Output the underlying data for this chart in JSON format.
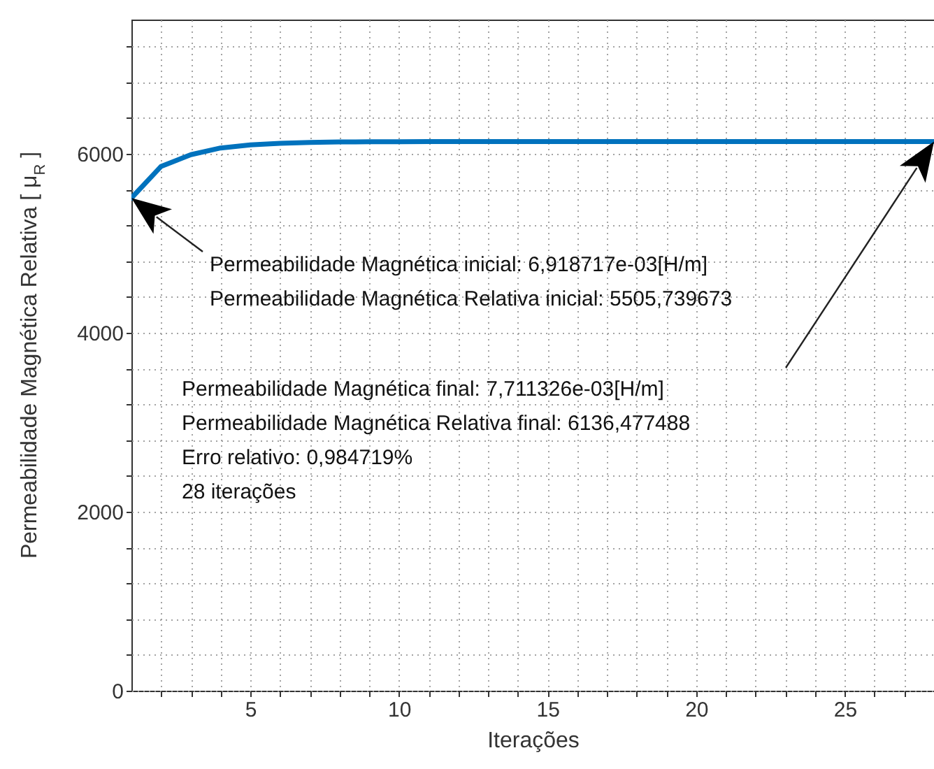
{
  "chart_data": {
    "type": "line",
    "xlabel": "Iterações",
    "ylabel": "Permeabilidade Magnética Relativa [ μ$_{R}$ ]",
    "x": [
      1,
      2,
      3,
      4,
      5,
      6,
      7,
      8,
      9,
      10,
      11,
      12,
      13,
      14,
      15,
      16,
      17,
      18,
      19,
      20,
      21,
      22,
      23,
      24,
      25,
      26,
      27,
      28
    ],
    "series": [
      {
        "color": "#0072bd",
        "values": [
          5506,
          5860,
          5990,
          6065,
          6100,
          6118,
          6127,
          6132,
          6134,
          6135,
          6136,
          6136,
          6136,
          6136,
          6136,
          6136,
          6136,
          6136,
          6136,
          6136,
          6136,
          6136,
          6136,
          6136,
          6136,
          6136,
          6136,
          6136
        ]
      }
    ],
    "xlim": [
      1,
      28
    ],
    "xticks": [
      {
        "value": 2,
        "label": null
      },
      {
        "value": 3,
        "label": null
      },
      {
        "value": 4,
        "label": null
      },
      5,
      {
        "value": 6,
        "label": null
      },
      {
        "value": 7,
        "label": null
      },
      {
        "value": 8,
        "label": null
      },
      {
        "value": 9,
        "label": null
      },
      10,
      {
        "value": 11,
        "label": null
      },
      {
        "value": 12,
        "label": null
      },
      {
        "value": 13,
        "label": null
      },
      {
        "value": 14,
        "label": null
      },
      15,
      {
        "value": 16,
        "label": null
      },
      {
        "value": 17,
        "label": null
      },
      {
        "value": 18,
        "label": null
      },
      {
        "value": 19,
        "label": null
      },
      20,
      {
        "value": 21,
        "label": null
      },
      {
        "value": 22,
        "label": null
      },
      {
        "value": 23,
        "label": null
      },
      {
        "value": 24,
        "label": null
      },
      25,
      {
        "value": 26,
        "label": null
      },
      {
        "value": 27,
        "label": null
      }
    ],
    "ylim": [
      0,
      7500
    ],
    "yticks": [
      0,
      {
        "value": 400,
        "label": null
      },
      {
        "value": 800,
        "label": null
      },
      {
        "value": 1200,
        "label": null
      },
      {
        "value": 1600,
        "label": null
      },
      2000,
      {
        "value": 2400,
        "label": null
      },
      {
        "value": 2800,
        "label": null
      },
      {
        "value": 3200,
        "label": null
      },
      {
        "value": 3600,
        "label": null
      },
      4000,
      {
        "value": 4400,
        "label": null
      },
      {
        "value": 4800,
        "label": null
      },
      {
        "value": 5200,
        "label": null
      },
      {
        "value": 5600,
        "label": null
      },
      6000,
      {
        "value": 6400,
        "label": null
      },
      {
        "value": 6800,
        "label": null
      },
      {
        "value": 7200,
        "label": null
      }
    ],
    "grid": true,
    "marker": "none",
    "line_style": "solid",
    "annotations": [
      "Permeabilidade Magnética inicial:  6,918717e-03[H/m]",
      "Permeabilidade Magnética Relativa inicial: 5505,739673",
      "Permeabilidade Magnética final:  7,711326e-03[H/m]",
      "Permeabilidade Magnética Relativa final:  6136,477488",
      "Erro relativo: 0,984719%",
      "28 iterações"
    ]
  }
}
